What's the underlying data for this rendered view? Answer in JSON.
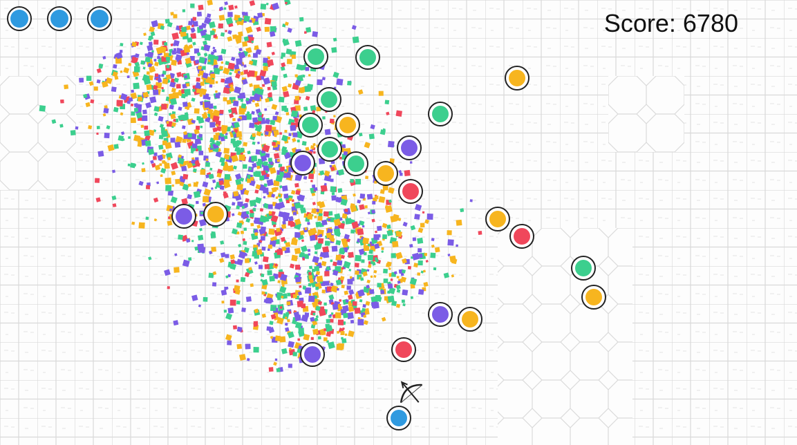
{
  "hud": {
    "score": "Score: 6780"
  }
}
